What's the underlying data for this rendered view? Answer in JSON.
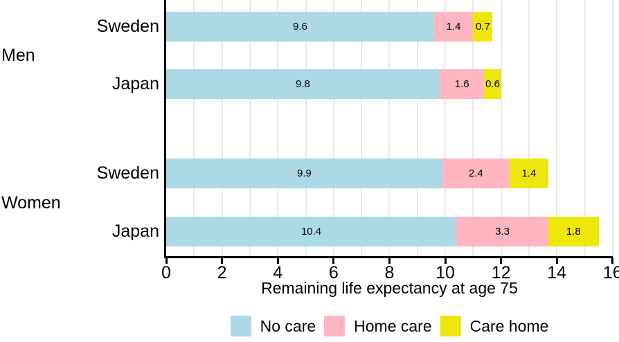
{
  "chart_data": {
    "type": "bar",
    "orientation": "horizontal_stacked",
    "title": "",
    "xlabel": "Remaining life expectancy at age 75",
    "ylabel": "",
    "xlim": [
      0,
      16
    ],
    "xticks": [
      0,
      2,
      4,
      6,
      8,
      10,
      12,
      14,
      16
    ],
    "grid": "vertical gridlines every 1 unit, light gray",
    "legend_position": "bottom",
    "value_labels": "one decimal, centered in each segment",
    "series": [
      "No care",
      "Home care",
      "Care home"
    ],
    "colors": {
      "No care": "#ADD8E6",
      "Home care": "#FFB6C1",
      "Care home": "#EDE70C",
      "axis": "#000000",
      "gridline": "#e9e9e9",
      "background": "#ffffff"
    },
    "groups": [
      {
        "label": "Men",
        "rows": [
          {
            "label": "Sweden",
            "values": [
              9.6,
              1.4,
              0.7
            ]
          },
          {
            "label": "Japan",
            "values": [
              9.8,
              1.6,
              0.6
            ]
          }
        ]
      },
      {
        "label": "Women",
        "rows": [
          {
            "label": "Sweden",
            "values": [
              9.9,
              2.4,
              1.4
            ]
          },
          {
            "label": "Japan",
            "values": [
              10.4,
              3.3,
              1.8
            ]
          }
        ]
      }
    ]
  },
  "legend": {
    "items": [
      {
        "label": "No care",
        "color": "#ADD8E6"
      },
      {
        "label": "Home care",
        "color": "#FFB6C1"
      },
      {
        "label": "Care home",
        "color": "#EDE70C"
      }
    ]
  }
}
